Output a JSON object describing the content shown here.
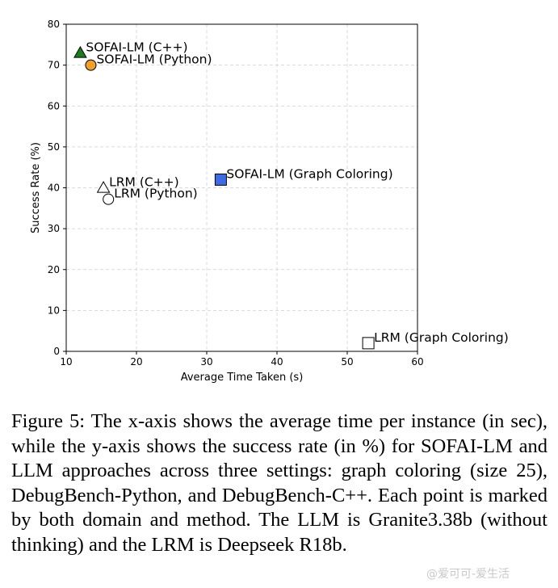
{
  "chart_data": {
    "type": "scatter",
    "xlabel": "Average Time Taken (s)",
    "ylabel": "Success Rate (%)",
    "xlim": [
      10,
      60
    ],
    "ylim": [
      0,
      80
    ],
    "xticks": [
      10,
      20,
      30,
      40,
      50,
      60
    ],
    "yticks": [
      0,
      10,
      20,
      30,
      40,
      50,
      60,
      70,
      80
    ],
    "grid": true,
    "points": [
      {
        "label": "SOFAI-LM (C++)",
        "x": 12,
        "y": 73,
        "marker": "triangle",
        "color": "#1f7a1f"
      },
      {
        "label": "SOFAI-LM (Python)",
        "x": 13.5,
        "y": 70,
        "marker": "circle",
        "color": "#f0a030"
      },
      {
        "label": "SOFAI-LM (Graph Coloring)",
        "x": 32,
        "y": 42,
        "marker": "square",
        "color": "#4169e1"
      },
      {
        "label": "LRM (C++)",
        "x": 15.3,
        "y": 40,
        "marker": "triangle",
        "color": "#ffffff"
      },
      {
        "label": "LRM (Python)",
        "x": 16,
        "y": 37.2,
        "marker": "circle",
        "color": "#ffffff"
      },
      {
        "label": "LRM (Graph Coloring)",
        "x": 53,
        "y": 2,
        "marker": "square",
        "color": "#ffffff"
      }
    ]
  },
  "caption": "Figure 5: The x-axis shows the average time per instance (in sec), while the y-axis shows the success rate (in %) for SOFAI-LM and LLM approaches across three settings: graph coloring (size 25), DebugBench-Python, and DebugBench-C++. Each point is marked by both domain and method. The LLM is Granite3.38b (without thinking) and the LRM is Deepseek R18b.",
  "watermark": "@爱可可-爱生活"
}
